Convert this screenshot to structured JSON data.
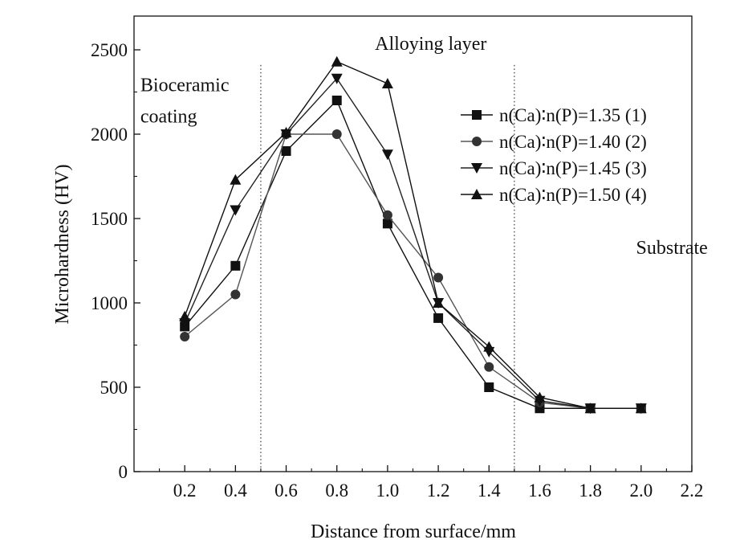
{
  "chart_data": {
    "type": "line",
    "xlabel": "Distance from surface/mm",
    "ylabel": "Microhardness (HV)",
    "xlim": [
      0,
      2.2
    ],
    "ylim": [
      0,
      2700
    ],
    "x_ticks": [
      0.2,
      0.4,
      0.6,
      0.8,
      1.0,
      1.2,
      1.4,
      1.6,
      1.8,
      2.0,
      2.2
    ],
    "x_tick_labels": [
      "0.2",
      "0.4",
      "0.6",
      "0.8",
      "1.0",
      "1.2",
      "1.4",
      "1.6",
      "1.8",
      "2.0",
      "2.2"
    ],
    "y_ticks": [
      0,
      500,
      1000,
      1500,
      2000,
      2500
    ],
    "y_tick_labels": [
      "0",
      "500",
      "1000",
      "1500",
      "2000",
      "2500"
    ],
    "x": [
      0.2,
      0.4,
      0.6,
      0.8,
      1.0,
      1.2,
      1.4,
      1.6,
      1.8,
      2.0
    ],
    "series": [
      {
        "name": "n(Ca)∶n(P)=1.35 (1)",
        "marker": "square",
        "values": [
          860,
          1220,
          1900,
          2200,
          1470,
          910,
          500,
          375,
          375,
          375
        ]
      },
      {
        "name": "n(Ca)∶n(P)=1.40 (2)",
        "marker": "circle",
        "values": [
          800,
          1050,
          2000,
          2000,
          1520,
          1150,
          620,
          410,
          375,
          375
        ]
      },
      {
        "name": "n(Ca)∶n(P)=1.45 (3)",
        "marker": "triangle-down",
        "values": [
          880,
          1550,
          2000,
          2330,
          1880,
          1000,
          710,
          420,
          375,
          375
        ]
      },
      {
        "name": "n(Ca)∶n(P)=1.50 (4)",
        "marker": "triangle-up",
        "values": [
          920,
          1730,
          2010,
          2430,
          2300,
          1000,
          740,
          440,
          375,
          375
        ]
      }
    ],
    "reference_lines_x": [
      0.5,
      1.5
    ],
    "annotations": [
      {
        "text": "Alloying layer",
        "x": 0.95,
        "y": 2500
      },
      {
        "text": "Bioceramic",
        "x": 0.025,
        "y": 2255
      },
      {
        "text": "coating",
        "x": 0.025,
        "y": 2070
      },
      {
        "text": "Substrate",
        "x": 1.98,
        "y": 1290
      }
    ],
    "legend_position": "top-right",
    "grid": false
  }
}
